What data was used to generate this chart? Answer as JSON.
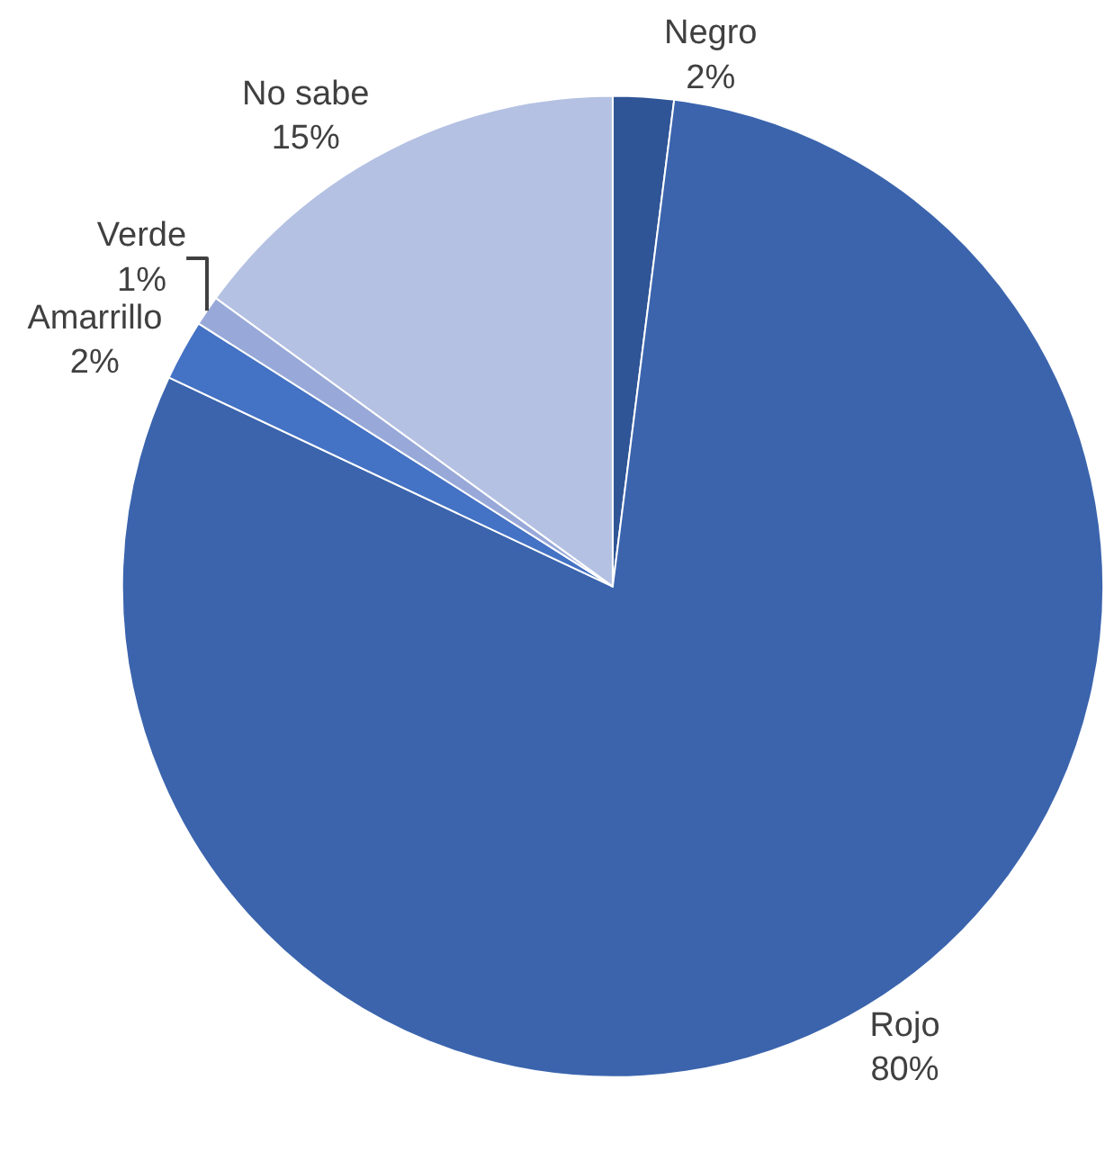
{
  "chart_data": {
    "type": "pie",
    "categories": [
      "Negro",
      "Rojo",
      "Amarrillo",
      "Verde",
      "No sabe"
    ],
    "values": [
      2,
      80,
      2,
      1,
      15
    ],
    "value_labels": [
      "2%",
      "80%",
      "2%",
      "1%",
      "15%"
    ],
    "colors": [
      "#2f5597",
      "#3b64ad",
      "#4472c4",
      "#98a9d9",
      "#b4c1e3"
    ],
    "legend": false
  }
}
